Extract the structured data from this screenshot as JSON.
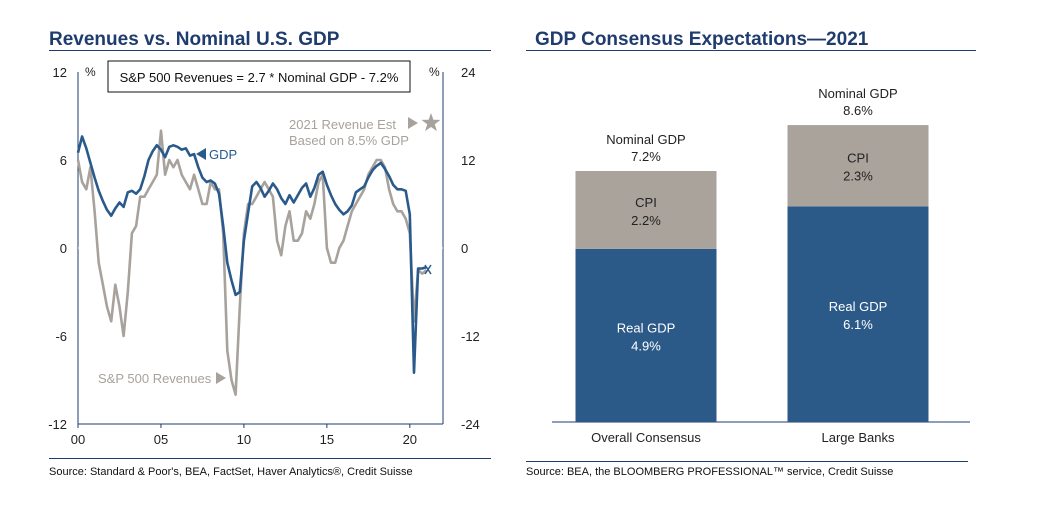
{
  "left": {
    "title": "Revenues vs. Nominal U.S. GDP",
    "source": "Source: Standard & Poor's, BEA, FactSet, Haver Analytics®, Credit Suisse"
  },
  "right": {
    "title": "GDP Consensus Expectations—2021",
    "source": "Source: BEA, the BLOOMBERG PROFESSIONAL™ service, Credit Suisse"
  },
  "colors": {
    "gdp": "#2a5a8c",
    "revenues": "#a8a29c",
    "cpi": "#aaa39c",
    "real_gdp": "#2b5a89",
    "title": "#1f3c6e"
  },
  "chart_data": [
    {
      "type": "line",
      "title": "Revenues vs. Nominal U.S. GDP",
      "left_axis": {
        "unit": "%",
        "range": [
          -12,
          12
        ],
        "ticks": [
          12,
          6,
          0,
          -6,
          -12
        ],
        "series": "GDP"
      },
      "right_axis": {
        "unit": "%",
        "range": [
          -24,
          24
        ],
        "ticks": [
          24,
          12,
          0,
          -12,
          -24
        ],
        "series": "S&P 500 Revenues"
      },
      "x_ticks": [
        "00",
        "05",
        "10",
        "15",
        "20"
      ],
      "x_tick_values": [
        2000,
        2005,
        2010,
        2015,
        2020
      ],
      "xlim": [
        2000,
        2022
      ],
      "equation": "S&P 500 Revenues = 2.7 * Nominal GDP - 7.2%",
      "series": [
        {
          "name": "GDP",
          "label": "GDP",
          "axis": "left",
          "x": [
            2000.0,
            2000.25,
            2000.5,
            2000.75,
            2001.0,
            2001.25,
            2001.5,
            2001.75,
            2002.0,
            2002.25,
            2002.5,
            2002.75,
            2003.0,
            2003.25,
            2003.5,
            2003.75,
            2004.0,
            2004.25,
            2004.5,
            2004.75,
            2005.0,
            2005.25,
            2005.5,
            2005.75,
            2006.0,
            2006.25,
            2006.5,
            2006.75,
            2007.0,
            2007.25,
            2007.5,
            2007.75,
            2008.0,
            2008.25,
            2008.5,
            2008.75,
            2009.0,
            2009.25,
            2009.5,
            2009.75,
            2010.0,
            2010.25,
            2010.5,
            2010.75,
            2011.0,
            2011.25,
            2011.5,
            2011.75,
            2012.0,
            2012.25,
            2012.5,
            2012.75,
            2013.0,
            2013.25,
            2013.5,
            2013.75,
            2014.0,
            2014.25,
            2014.5,
            2014.75,
            2015.0,
            2015.25,
            2015.5,
            2015.75,
            2016.0,
            2016.25,
            2016.5,
            2016.75,
            2017.0,
            2017.25,
            2017.5,
            2017.75,
            2018.0,
            2018.25,
            2018.5,
            2018.75,
            2019.0,
            2019.25,
            2019.5,
            2019.75,
            2020.0,
            2020.25,
            2020.5,
            2020.75,
            2021.0
          ],
          "y": [
            6.5,
            7.6,
            6.8,
            5.8,
            4.8,
            3.9,
            3.2,
            2.6,
            2.2,
            2.7,
            3.1,
            2.8,
            3.8,
            3.9,
            3.7,
            4.0,
            4.9,
            6.0,
            6.6,
            7.0,
            6.7,
            6.2,
            6.9,
            7.0,
            6.9,
            6.7,
            6.8,
            6.3,
            6.4,
            5.5,
            4.8,
            4.5,
            4.6,
            4.4,
            3.7,
            1.5,
            -1.0,
            -2.2,
            -3.2,
            -3.0,
            0.5,
            2.4,
            4.2,
            4.5,
            4.1,
            3.5,
            3.9,
            4.4,
            4.0,
            3.4,
            3.0,
            3.6,
            3.1,
            3.6,
            4.1,
            4.4,
            3.5,
            4.1,
            5.0,
            5.2,
            4.3,
            3.6,
            3.0,
            2.6,
            2.3,
            2.5,
            2.9,
            3.8,
            4.0,
            4.2,
            4.8,
            5.3,
            5.6,
            5.8,
            5.4,
            4.9,
            4.3,
            4.0,
            4.0,
            3.9,
            2.3,
            -8.5,
            -1.4,
            -1.4,
            -1.3
          ]
        },
        {
          "name": "S&P 500 Revenues",
          "label": "S&P 500 Revenues",
          "axis": "right",
          "x": [
            2000.0,
            2000.25,
            2000.5,
            2000.75,
            2001.0,
            2001.25,
            2001.5,
            2001.75,
            2002.0,
            2002.25,
            2002.5,
            2002.75,
            2003.0,
            2003.25,
            2003.5,
            2003.75,
            2004.0,
            2004.25,
            2004.5,
            2004.75,
            2005.0,
            2005.25,
            2005.5,
            2005.75,
            2006.0,
            2006.25,
            2006.5,
            2006.75,
            2007.0,
            2007.25,
            2007.5,
            2007.75,
            2008.0,
            2008.25,
            2008.5,
            2008.75,
            2009.0,
            2009.25,
            2009.5,
            2009.75,
            2010.0,
            2010.25,
            2010.5,
            2010.75,
            2011.0,
            2011.25,
            2011.5,
            2011.75,
            2012.0,
            2012.25,
            2012.5,
            2012.75,
            2013.0,
            2013.25,
            2013.5,
            2013.75,
            2014.0,
            2014.25,
            2014.5,
            2014.75,
            2015.0,
            2015.25,
            2015.5,
            2015.75,
            2016.0,
            2016.25,
            2016.5,
            2016.75,
            2017.0,
            2017.25,
            2017.5,
            2017.75,
            2018.0,
            2018.25,
            2018.5,
            2018.75,
            2019.0,
            2019.25,
            2019.5,
            2019.75,
            2020.0,
            2020.25,
            2020.5,
            2020.75,
            2021.0
          ],
          "y": [
            12.0,
            9.0,
            8.0,
            11.0,
            5.0,
            -2.0,
            -5.0,
            -8.0,
            -10.0,
            -5.0,
            -8.0,
            -12.0,
            -6.0,
            2.0,
            3.0,
            7.0,
            7.0,
            8.0,
            9.0,
            10.0,
            16.0,
            10.0,
            12.0,
            11.0,
            12.0,
            10.0,
            9.0,
            8.0,
            10.0,
            8.0,
            6.0,
            6.0,
            9.0,
            8.0,
            8.0,
            2.0,
            -14.0,
            -18.0,
            -20.0,
            -8.0,
            2.0,
            6.0,
            6.0,
            7.0,
            8.0,
            9.0,
            8.0,
            7.0,
            1.0,
            -1.0,
            3.0,
            5.0,
            1.0,
            1.0,
            2.0,
            5.0,
            4.0,
            6.0,
            9.0,
            10.0,
            0.0,
            -2.0,
            -2.0,
            0.0,
            1.0,
            3.0,
            5.0,
            6.0,
            7.0,
            8.0,
            10.0,
            11.0,
            12.0,
            12.0,
            11.0,
            8.0,
            6.0,
            5.0,
            5.0,
            4.0,
            2.0,
            -10.0,
            -3.0,
            -3.5,
            -3.0
          ]
        }
      ],
      "annotation": {
        "text_line1": "2021 Revenue Est",
        "text_line2": "Based on 8.5% GDP",
        "marker": "star"
      }
    },
    {
      "type": "bar",
      "stacked": true,
      "title": "GDP Consensus Expectations—2021",
      "categories": [
        "Overall Consensus",
        "Large Banks"
      ],
      "ylim": [
        0,
        10
      ],
      "series": [
        {
          "name": "Real GDP",
          "values": [
            4.9,
            6.1
          ],
          "labels": [
            "4.9%",
            "6.1%"
          ]
        },
        {
          "name": "CPI",
          "values": [
            2.2,
            2.3
          ],
          "labels": [
            "2.2%",
            "2.3%"
          ]
        }
      ],
      "totals": {
        "name": "Nominal GDP",
        "values": [
          7.2,
          8.6
        ],
        "labels": [
          "7.2%",
          "8.6%"
        ]
      }
    }
  ]
}
